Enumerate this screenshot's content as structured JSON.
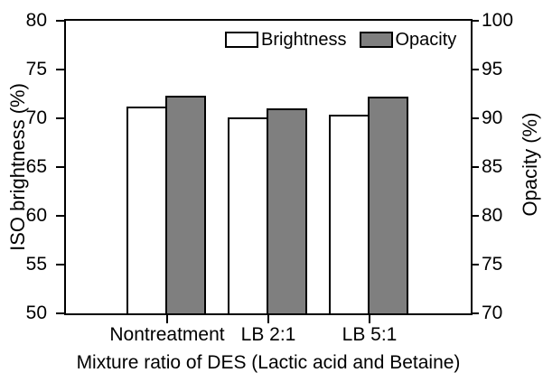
{
  "chart_data": {
    "type": "bar",
    "title": "",
    "xlabel": "Mixture ratio of DES (Lactic acid and Betaine)",
    "categories": [
      "Nontreatment",
      "LB 2:1",
      "LB 5:1"
    ],
    "series": [
      {
        "name": "Brightness",
        "axis": "left",
        "color": "#ffffff",
        "values": [
          71.2,
          70.1,
          70.4
        ]
      },
      {
        "name": "Opacity",
        "axis": "right",
        "color": "#7f7f7f",
        "values": [
          92.3,
          91.0,
          92.2
        ]
      }
    ],
    "left_axis": {
      "label": "ISO brightness (%)",
      "min": 50,
      "max": 80,
      "ticks": [
        50,
        55,
        60,
        65,
        70,
        75,
        80
      ]
    },
    "right_axis": {
      "label": "Opacity (%)",
      "min": 70,
      "max": 100,
      "ticks": [
        70,
        75,
        80,
        85,
        90,
        95,
        100
      ]
    },
    "legend": {
      "position": "top-center",
      "items": [
        "Brightness",
        "Opacity"
      ]
    },
    "grid": false,
    "bar_outline_color": "#000000",
    "axis_color": "#000000"
  }
}
